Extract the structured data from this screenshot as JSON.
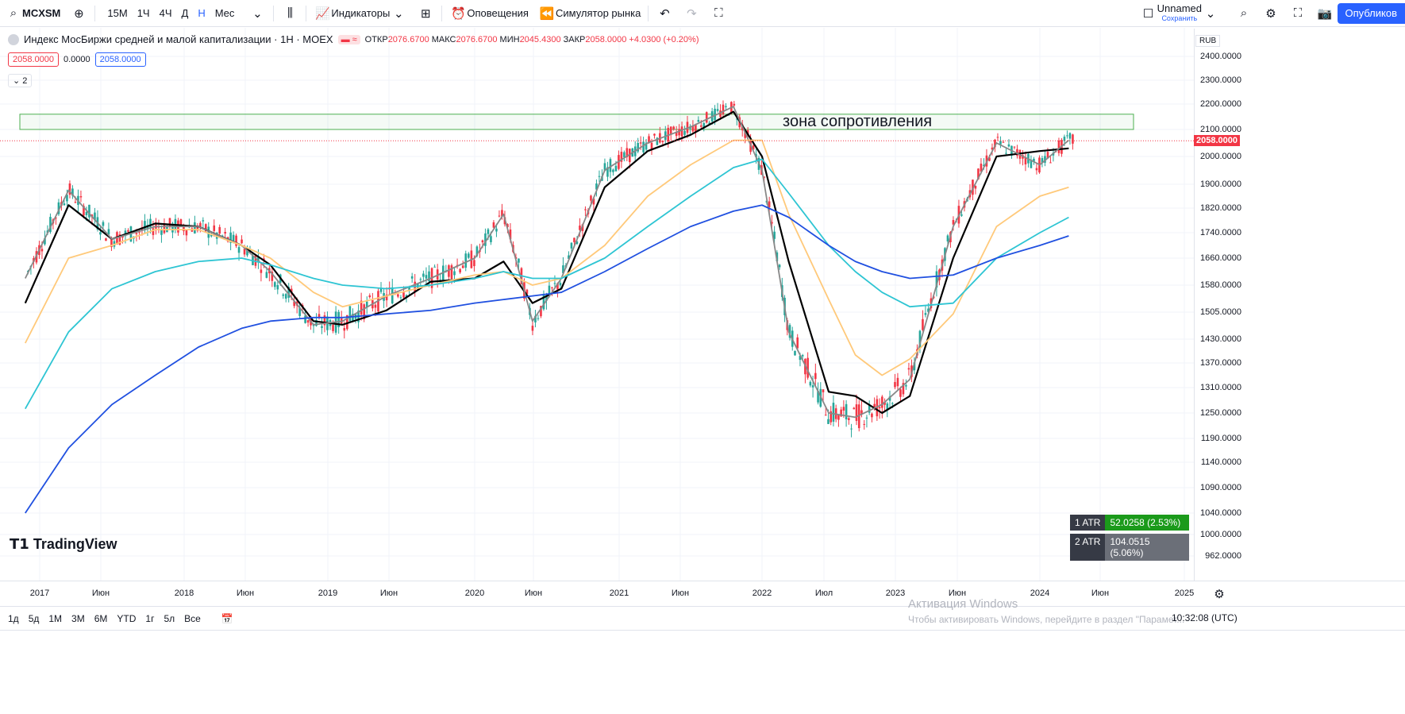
{
  "toolbar": {
    "symbol": "MCXSM",
    "intervals": [
      "15М",
      "1Ч",
      "4Ч",
      "Д",
      "Н",
      "Мес"
    ],
    "active_interval": "Н",
    "indicators_label": "Индикаторы",
    "alerts_label": "Оповещения",
    "replay_label": "Симулятор рынка",
    "layout_name": "Unnamed",
    "save_label": "Сохранить",
    "publish_label": "Опубликов"
  },
  "legend": {
    "title": "Индекс МосБиржи средней и малой капитализации · 1Н · MOEX",
    "open_label": "ОТКР",
    "open": "2076.6700",
    "high_label": "МАКС",
    "high": "2076.6700",
    "low_label": "МИН",
    "low": "2045.4300",
    "close_label": "ЗАКР",
    "close": "2058.0000",
    "change": "+4.0300 (+0.20%)",
    "box1": "2058.0000",
    "box_mid": "0.0000",
    "box2": "2058.0000",
    "collapse_count": "2"
  },
  "price_scale": {
    "currency": "RUB",
    "current_price": "2058.0000",
    "labels": [
      "2400.0000",
      "2300.0000",
      "2200.0000",
      "2100.0000",
      "2000.0000",
      "1900.0000",
      "1820.0000",
      "1740.0000",
      "1660.0000",
      "1580.0000",
      "1505.0000",
      "1430.0000",
      "1370.0000",
      "1310.0000",
      "1250.0000",
      "1190.0000",
      "1140.0000",
      "1090.0000",
      "1040.0000",
      "1000.0000",
      "962.0000"
    ]
  },
  "time_axis": {
    "labels": [
      "2017",
      "Июн",
      "2018",
      "Июн",
      "2019",
      "Июн",
      "2020",
      "Июн",
      "2021",
      "Июн",
      "2022",
      "Июл",
      "2023",
      "Июн",
      "2024",
      "Июн",
      "2025"
    ]
  },
  "annotation": {
    "zone_label": "зона сопротивления"
  },
  "atr": [
    {
      "label": "1 ATR",
      "value": "52.0258 (2.53%)",
      "color": "#1b9a1b"
    },
    {
      "label": "2 ATR",
      "value": "104.0515 (5.06%)",
      "color": "#6b6f78"
    }
  ],
  "bottom": {
    "ranges": [
      "1д",
      "5д",
      "1М",
      "3М",
      "6М",
      "YTD",
      "1г",
      "5л",
      "Все"
    ],
    "clock": "10:32:08 (UTC)",
    "win_title": "Активация Windows",
    "win_sub": "Чтобы активировать Windows, перейдите в раздел \"Парамет..."
  },
  "brand": {
    "logo": "TradingView"
  },
  "colors": {
    "up": "#26a69a",
    "down": "#f23645",
    "ma_black": "#000000",
    "ma_gray": "#888888",
    "ma_orange": "#ffc97a",
    "ma_cyan": "#2ec5d3",
    "ma_blue": "#2050e0",
    "zone": "#4caf50"
  },
  "chart_data": {
    "type": "line",
    "title": "",
    "ylim": [
      962,
      2400
    ],
    "x_range": [
      "2016-11",
      "2025-01"
    ],
    "series": [
      {
        "color": "#000000",
        "values": [
          [
            2016.9,
            1530
          ],
          [
            2017.2,
            1830
          ],
          [
            2017.5,
            1720
          ],
          [
            2017.8,
            1770
          ],
          [
            2018.1,
            1760
          ],
          [
            2018.4,
            1700
          ],
          [
            2018.6,
            1640
          ],
          [
            2018.9,
            1480
          ],
          [
            2019.1,
            1470
          ],
          [
            2019.4,
            1510
          ],
          [
            2019.7,
            1590
          ],
          [
            2020.0,
            1600
          ],
          [
            2020.2,
            1650
          ],
          [
            2020.4,
            1530
          ],
          [
            2020.6,
            1570
          ],
          [
            2020.9,
            1890
          ],
          [
            2021.2,
            2020
          ],
          [
            2021.5,
            2080
          ],
          [
            2021.8,
            2170
          ],
          [
            2022.0,
            2000
          ],
          [
            2022.2,
            1650
          ],
          [
            2022.5,
            1300
          ],
          [
            2022.7,
            1290
          ],
          [
            2022.9,
            1250
          ],
          [
            2023.1,
            1290
          ],
          [
            2023.4,
            1660
          ],
          [
            2023.7,
            2000
          ],
          [
            2024.0,
            2020
          ],
          [
            2024.2,
            2030
          ]
        ]
      },
      {
        "color": "#888888",
        "values": [
          [
            2016.9,
            1600
          ],
          [
            2017.2,
            1880
          ],
          [
            2017.5,
            1720
          ],
          [
            2017.8,
            1760
          ],
          [
            2018.1,
            1760
          ],
          [
            2018.4,
            1700
          ],
          [
            2018.6,
            1620
          ],
          [
            2018.9,
            1470
          ],
          [
            2019.1,
            1480
          ],
          [
            2019.4,
            1550
          ],
          [
            2019.7,
            1600
          ],
          [
            2020.0,
            1660
          ],
          [
            2020.2,
            1800
          ],
          [
            2020.4,
            1480
          ],
          [
            2020.6,
            1600
          ],
          [
            2020.9,
            1950
          ],
          [
            2021.2,
            2050
          ],
          [
            2021.5,
            2110
          ],
          [
            2021.8,
            2190
          ],
          [
            2022.0,
            1950
          ],
          [
            2022.2,
            1450
          ],
          [
            2022.5,
            1250
          ],
          [
            2022.7,
            1240
          ],
          [
            2022.9,
            1270
          ],
          [
            2023.1,
            1330
          ],
          [
            2023.4,
            1760
          ],
          [
            2023.7,
            2050
          ],
          [
            2024.0,
            1970
          ],
          [
            2024.2,
            2060
          ]
        ]
      },
      {
        "color": "#ffc97a",
        "values": [
          [
            2016.9,
            1420
          ],
          [
            2017.2,
            1660
          ],
          [
            2017.5,
            1700
          ],
          [
            2017.8,
            1750
          ],
          [
            2018.1,
            1750
          ],
          [
            2018.4,
            1700
          ],
          [
            2018.6,
            1660
          ],
          [
            2018.9,
            1560
          ],
          [
            2019.1,
            1520
          ],
          [
            2019.4,
            1550
          ],
          [
            2019.7,
            1580
          ],
          [
            2020.0,
            1610
          ],
          [
            2020.2,
            1620
          ],
          [
            2020.4,
            1580
          ],
          [
            2020.6,
            1600
          ],
          [
            2020.9,
            1700
          ],
          [
            2021.2,
            1860
          ],
          [
            2021.5,
            1970
          ],
          [
            2021.8,
            2060
          ],
          [
            2022.0,
            2060
          ],
          [
            2022.2,
            1800
          ],
          [
            2022.5,
            1540
          ],
          [
            2022.7,
            1390
          ],
          [
            2022.9,
            1340
          ],
          [
            2023.1,
            1380
          ],
          [
            2023.4,
            1500
          ],
          [
            2023.7,
            1760
          ],
          [
            2024.0,
            1860
          ],
          [
            2024.2,
            1890
          ]
        ]
      },
      {
        "color": "#2ec5d3",
        "values": [
          [
            2016.9,
            1260
          ],
          [
            2017.2,
            1450
          ],
          [
            2017.5,
            1570
          ],
          [
            2017.8,
            1620
          ],
          [
            2018.1,
            1650
          ],
          [
            2018.4,
            1660
          ],
          [
            2018.6,
            1640
          ],
          [
            2018.9,
            1600
          ],
          [
            2019.1,
            1580
          ],
          [
            2019.4,
            1570
          ],
          [
            2019.7,
            1580
          ],
          [
            2020.0,
            1600
          ],
          [
            2020.2,
            1620
          ],
          [
            2020.4,
            1600
          ],
          [
            2020.6,
            1600
          ],
          [
            2020.9,
            1660
          ],
          [
            2021.2,
            1760
          ],
          [
            2021.5,
            1860
          ],
          [
            2021.8,
            1960
          ],
          [
            2022.0,
            1990
          ],
          [
            2022.2,
            1870
          ],
          [
            2022.5,
            1700
          ],
          [
            2022.7,
            1620
          ],
          [
            2022.9,
            1560
          ],
          [
            2023.1,
            1520
          ],
          [
            2023.4,
            1530
          ],
          [
            2023.7,
            1660
          ],
          [
            2024.0,
            1740
          ],
          [
            2024.2,
            1790
          ]
        ]
      },
      {
        "color": "#2050e0",
        "values": [
          [
            2016.9,
            1040
          ],
          [
            2017.2,
            1170
          ],
          [
            2017.5,
            1270
          ],
          [
            2017.8,
            1340
          ],
          [
            2018.1,
            1410
          ],
          [
            2018.4,
            1460
          ],
          [
            2018.6,
            1480
          ],
          [
            2018.9,
            1490
          ],
          [
            2019.1,
            1490
          ],
          [
            2019.4,
            1500
          ],
          [
            2019.7,
            1510
          ],
          [
            2020.0,
            1530
          ],
          [
            2020.2,
            1540
          ],
          [
            2020.4,
            1550
          ],
          [
            2020.6,
            1560
          ],
          [
            2020.9,
            1620
          ],
          [
            2021.2,
            1690
          ],
          [
            2021.5,
            1760
          ],
          [
            2021.8,
            1810
          ],
          [
            2022.0,
            1830
          ],
          [
            2022.2,
            1790
          ],
          [
            2022.5,
            1700
          ],
          [
            2022.7,
            1650
          ],
          [
            2022.9,
            1620
          ],
          [
            2023.1,
            1600
          ],
          [
            2023.4,
            1610
          ],
          [
            2023.7,
            1660
          ],
          [
            2024.0,
            1700
          ],
          [
            2024.2,
            1730
          ]
        ]
      }
    ],
    "resistance_zone": [
      2100,
      2160
    ]
  }
}
